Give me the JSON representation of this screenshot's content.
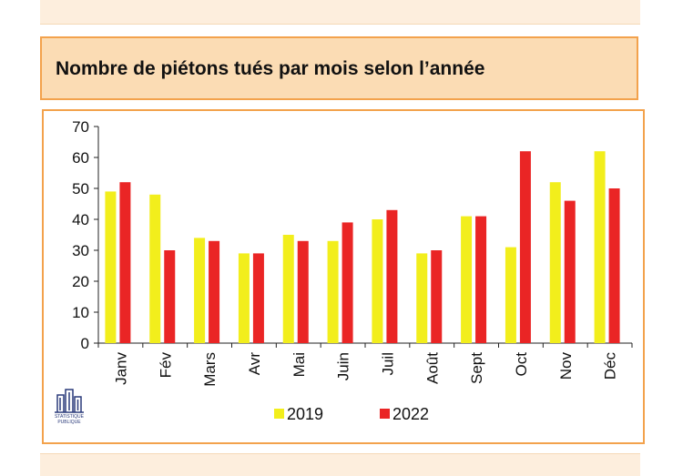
{
  "title": "Nombre de piétons tués par mois selon l’année",
  "logo": {
    "line1": "STATISTIQUE",
    "line2": "PUBLIQUE"
  },
  "colors": {
    "s2019": "#f2ee1c",
    "s2022": "#ea2525",
    "frame": "#f3a24c",
    "titleBg": "#fbdcb4"
  },
  "chart_data": {
    "type": "bar",
    "title": "Nombre de piétons tués par mois selon l’année",
    "xlabel": "",
    "ylabel": "",
    "ylim": [
      0,
      70
    ],
    "yticks": [
      0,
      10,
      20,
      30,
      40,
      50,
      60,
      70
    ],
    "grid": false,
    "legend_position": "bottom",
    "categories": [
      "Janv",
      "Fév",
      "Mars",
      "Avr",
      "Mai",
      "Juin",
      "Juil",
      "Août",
      "Sept",
      "Oct",
      "Nov",
      "Déc"
    ],
    "series": [
      {
        "name": "2019",
        "color": "#f2ee1c",
        "values": [
          49,
          48,
          34,
          29,
          35,
          33,
          40,
          29,
          41,
          31,
          52,
          62
        ]
      },
      {
        "name": "2022",
        "color": "#ea2525",
        "values": [
          52,
          30,
          33,
          29,
          33,
          39,
          43,
          30,
          41,
          62,
          46,
          50
        ]
      }
    ]
  }
}
